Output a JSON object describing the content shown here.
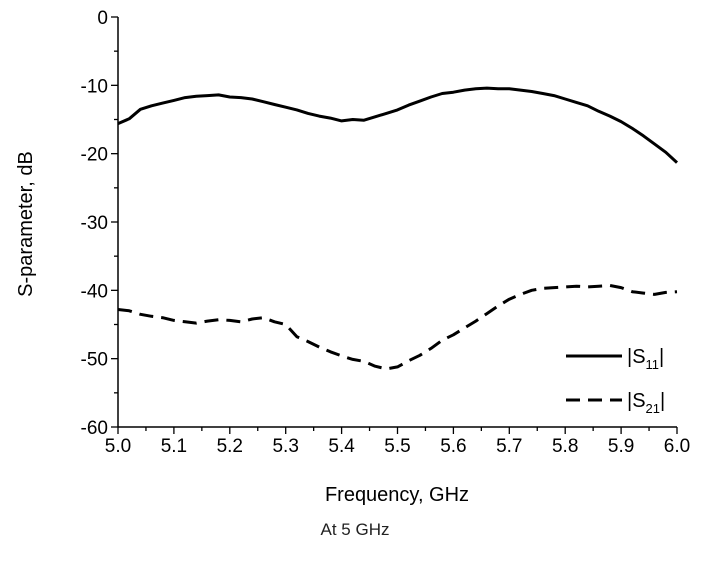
{
  "chart_data": {
    "type": "line",
    "title": "",
    "xlabel": "Frequency, GHz",
    "ylabel": "S-parameter, dB",
    "xlim": [
      5.0,
      6.0
    ],
    "ylim": [
      -60,
      0
    ],
    "x_ticks": [
      "5.0",
      "5.1",
      "5.2",
      "5.3",
      "5.4",
      "5.5",
      "5.6",
      "5.7",
      "5.8",
      "5.9",
      "6.0"
    ],
    "y_ticks": [
      "0",
      "-10",
      "-20",
      "-30",
      "-40",
      "-50",
      "-60"
    ],
    "grid": false,
    "legend_position": "bottom-right",
    "series": [
      {
        "name": "|S11|",
        "label_main": "|S",
        "label_sub": "11",
        "label_end": "|",
        "style": "solid",
        "color": "#000000",
        "x": [
          5.0,
          5.02,
          5.04,
          5.06,
          5.08,
          5.1,
          5.12,
          5.14,
          5.16,
          5.18,
          5.2,
          5.22,
          5.24,
          5.26,
          5.28,
          5.3,
          5.32,
          5.34,
          5.36,
          5.38,
          5.4,
          5.42,
          5.44,
          5.46,
          5.48,
          5.5,
          5.52,
          5.54,
          5.56,
          5.58,
          5.6,
          5.62,
          5.64,
          5.66,
          5.68,
          5.7,
          5.72,
          5.74,
          5.76,
          5.78,
          5.8,
          5.82,
          5.84,
          5.86,
          5.88,
          5.9,
          5.92,
          5.94,
          5.96,
          5.98,
          6.0
        ],
        "y": [
          -15.6,
          -14.9,
          -13.5,
          -13.0,
          -12.6,
          -12.2,
          -11.8,
          -11.6,
          -11.5,
          -11.4,
          -11.7,
          -11.8,
          -12.0,
          -12.4,
          -12.8,
          -13.2,
          -13.6,
          -14.1,
          -14.5,
          -14.8,
          -15.2,
          -15.0,
          -15.1,
          -14.6,
          -14.1,
          -13.6,
          -12.9,
          -12.3,
          -11.7,
          -11.2,
          -11.0,
          -10.7,
          -10.5,
          -10.4,
          -10.5,
          -10.5,
          -10.7,
          -10.9,
          -11.2,
          -11.5,
          -12.0,
          -12.5,
          -13.0,
          -13.8,
          -14.5,
          -15.3,
          -16.3,
          -17.4,
          -18.6,
          -19.8,
          -21.3
        ]
      },
      {
        "name": "|S21|",
        "label_main": "|S",
        "label_sub": "21",
        "label_end": "|",
        "style": "dashed",
        "color": "#000000",
        "x": [
          5.0,
          5.02,
          5.04,
          5.06,
          5.08,
          5.1,
          5.12,
          5.14,
          5.16,
          5.18,
          5.2,
          5.22,
          5.24,
          5.26,
          5.28,
          5.3,
          5.32,
          5.34,
          5.36,
          5.38,
          5.4,
          5.42,
          5.44,
          5.46,
          5.48,
          5.5,
          5.52,
          5.54,
          5.56,
          5.58,
          5.6,
          5.62,
          5.64,
          5.66,
          5.68,
          5.7,
          5.72,
          5.74,
          5.76,
          5.78,
          5.8,
          5.82,
          5.84,
          5.86,
          5.88,
          5.9,
          5.92,
          5.94,
          5.96,
          5.98,
          6.0
        ],
        "y": [
          -42.8,
          -43.0,
          -43.5,
          -43.8,
          -44.0,
          -44.4,
          -44.6,
          -44.8,
          -44.5,
          -44.3,
          -44.4,
          -44.6,
          -44.2,
          -44.0,
          -44.6,
          -45.0,
          -46.8,
          -47.5,
          -48.3,
          -49.0,
          -49.6,
          -50.1,
          -50.4,
          -51.1,
          -51.5,
          -51.2,
          -50.3,
          -49.5,
          -48.5,
          -47.3,
          -46.5,
          -45.5,
          -44.5,
          -43.4,
          -42.3,
          -41.3,
          -40.6,
          -40.0,
          -39.7,
          -39.6,
          -39.5,
          -39.4,
          -39.5,
          -39.4,
          -39.3,
          -39.6,
          -40.2,
          -40.4,
          -40.6,
          -40.3,
          -40.2
        ]
      }
    ]
  },
  "caption": "At 5 GHz"
}
